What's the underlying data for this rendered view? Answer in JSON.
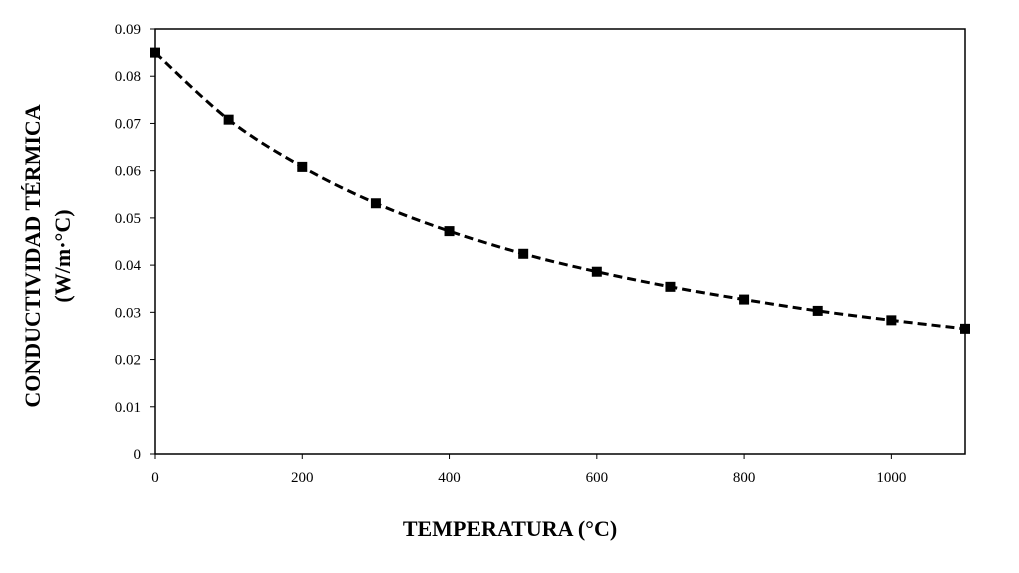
{
  "chart_data": {
    "type": "line",
    "title": "",
    "xlabel": "TEMPERATURA (°C)",
    "ylabel_line1": "CONDUCTIVIDAD TÉRMICA",
    "ylabel_line2": "(W/m·°C)",
    "xlim": [
      0,
      1100
    ],
    "ylim": [
      0,
      0.09
    ],
    "xticks": [
      0,
      200,
      400,
      600,
      800,
      1000
    ],
    "xtick_labels": [
      "0",
      "200",
      "400",
      "600",
      "800",
      "1000"
    ],
    "yticks": [
      0,
      0.01,
      0.02,
      0.03,
      0.04,
      0.05,
      0.06,
      0.07,
      0.08,
      0.09
    ],
    "ytick_labels": [
      "0",
      "0.01",
      "0.02",
      "0.03",
      "0.04",
      "0.05",
      "0.06",
      "0.07",
      "0.08",
      "0.09"
    ],
    "grid": false,
    "legend": "none",
    "series": [
      {
        "name": "Conductividad térmica",
        "line_style": "dashed",
        "marker": "square",
        "color": "#000000",
        "x": [
          0,
          100,
          200,
          300,
          400,
          500,
          600,
          700,
          800,
          900,
          1000,
          1100
        ],
        "y": [
          0.085,
          0.0708,
          0.0608,
          0.0531,
          0.0472,
          0.0424,
          0.0386,
          0.0354,
          0.0327,
          0.0303,
          0.0283,
          0.0265
        ]
      }
    ]
  }
}
